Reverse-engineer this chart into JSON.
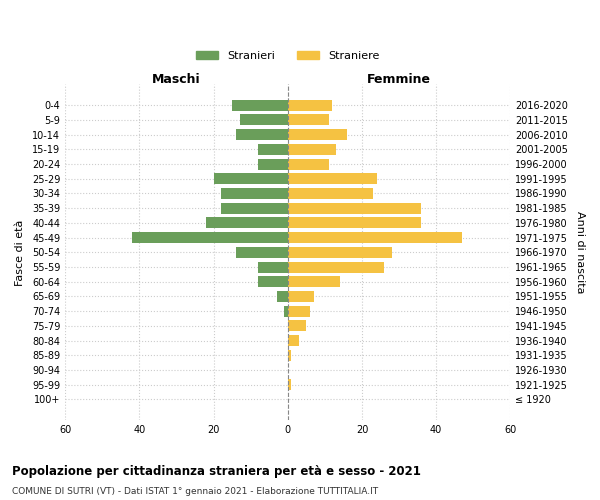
{
  "age_groups": [
    "100+",
    "95-99",
    "90-94",
    "85-89",
    "80-84",
    "75-79",
    "70-74",
    "65-69",
    "60-64",
    "55-59",
    "50-54",
    "45-49",
    "40-44",
    "35-39",
    "30-34",
    "25-29",
    "20-24",
    "15-19",
    "10-14",
    "5-9",
    "0-4"
  ],
  "birth_years": [
    "≤ 1920",
    "1921-1925",
    "1926-1930",
    "1931-1935",
    "1936-1940",
    "1941-1945",
    "1946-1950",
    "1951-1955",
    "1956-1960",
    "1961-1965",
    "1966-1970",
    "1971-1975",
    "1976-1980",
    "1981-1985",
    "1986-1990",
    "1991-1995",
    "1996-2000",
    "2001-2005",
    "2006-2010",
    "2011-2015",
    "2016-2020"
  ],
  "maschi": [
    0,
    0,
    0,
    0,
    0,
    0,
    1,
    3,
    8,
    8,
    14,
    42,
    22,
    18,
    18,
    20,
    8,
    8,
    14,
    13,
    15
  ],
  "femmine": [
    0,
    1,
    0,
    1,
    3,
    5,
    6,
    7,
    14,
    26,
    28,
    47,
    36,
    36,
    23,
    24,
    11,
    13,
    16,
    11,
    12
  ],
  "color_maschi": "#6a9e5a",
  "color_femmine": "#f5c242",
  "title": "Popolazione per cittadinanza straniera per età e sesso - 2021",
  "subtitle": "COMUNE DI SUTRI (VT) - Dati ISTAT 1° gennaio 2021 - Elaborazione TUTTITALIA.IT",
  "legend_maschi": "Stranieri",
  "legend_femmine": "Straniere",
  "xlabel_left": "Maschi",
  "xlabel_right": "Femmine",
  "ylabel_left": "Fasce di età",
  "ylabel_right": "Anni di nascita",
  "xlim": 60,
  "background_color": "#ffffff",
  "grid_color": "#cccccc"
}
